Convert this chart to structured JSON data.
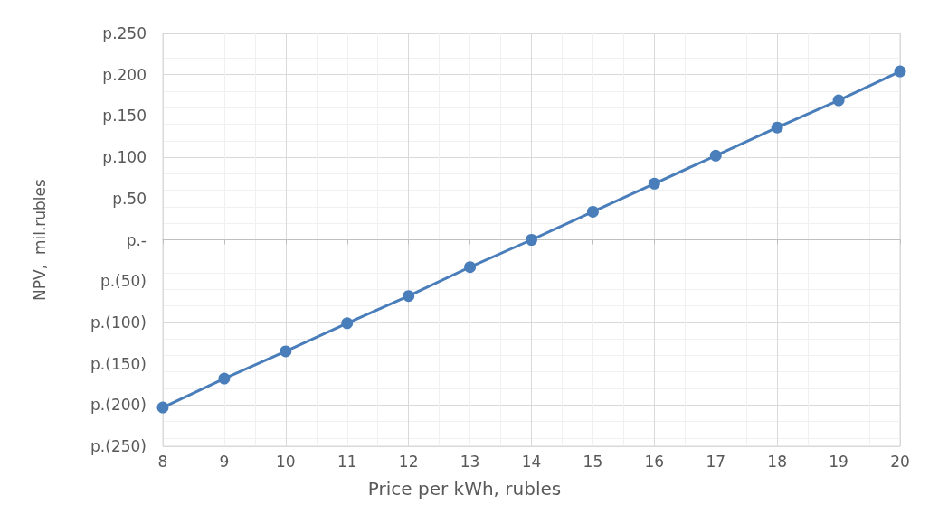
{
  "chart_data": {
    "type": "line",
    "xlabel": "Price per kWh, rubles",
    "ylabel": "NPV,  mil.rubles",
    "x": [
      8,
      9,
      10,
      11,
      12,
      13,
      14,
      15,
      16,
      17,
      18,
      19,
      20
    ],
    "series": [
      {
        "color": "#4a7ebb",
        "values": [
          -203,
          -168,
          -135,
          -101,
          -68,
          -33,
          0,
          34,
          68,
          102,
          136,
          169,
          204
        ]
      }
    ],
    "xlim": [
      8,
      20
    ],
    "xticks": [
      8,
      9,
      10,
      11,
      12,
      13,
      14,
      15,
      16,
      17,
      18,
      19,
      20
    ],
    "ylim": [
      -250,
      250
    ],
    "yticks": [
      {
        "value": -250,
        "label": "p.(250)"
      },
      {
        "value": -200,
        "label": "p.(200)"
      },
      {
        "value": -150,
        "label": "p.(150)"
      },
      {
        "value": -100,
        "label": "p.(100)"
      },
      {
        "value": -50,
        "label": "p.(50)"
      },
      {
        "value": 0,
        "label": "p.-"
      },
      {
        "value": 50,
        "label": "p.50"
      },
      {
        "value": 100,
        "label": "p.100"
      },
      {
        "value": 150,
        "label": "p.150"
      },
      {
        "value": 200,
        "label": "p.200"
      },
      {
        "value": 250,
        "label": "p.250"
      }
    ],
    "grid": true,
    "marker": "circle",
    "line_style": "solid"
  }
}
